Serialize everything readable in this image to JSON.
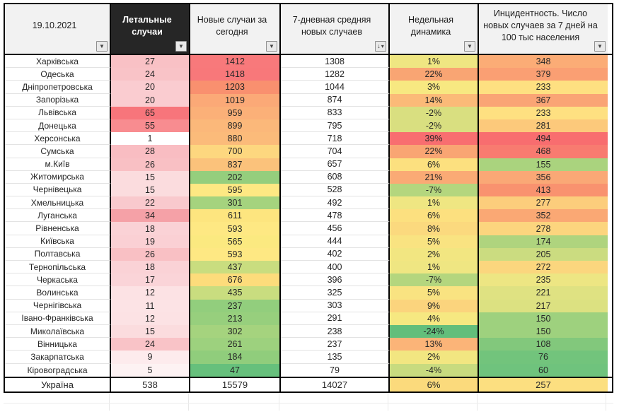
{
  "meta": {
    "date_label": "19.10.2021",
    "total_label": "Україна"
  },
  "colors": {
    "header_dark_bg": "#262626",
    "header_dark_text": "#FFFFFF",
    "header_light_bg": "#F2F2F2",
    "table_border": "#000000",
    "gridline": "#E3E3E3",
    "scale_red": "#F8696B",
    "scale_yellow": "#FFEB84",
    "scale_green": "#63BE7B"
  },
  "header": {
    "columns": [
      {
        "label": "19.10.2021",
        "dark": false,
        "filter_icon": "filter-dropdown-icon"
      },
      {
        "label": "Летальные случаи",
        "dark": true,
        "filter_icon": "filter-dropdown-icon"
      },
      {
        "label": "Новые случаи за сегодня",
        "dark": false,
        "filter_icon": "filter-dropdown-icon"
      },
      {
        "label": "7-дневная средняя новых случаев",
        "dark": false,
        "filter_icon": "filter-sorted-desc-icon"
      },
      {
        "label": "Недельная динамика",
        "dark": false,
        "filter_icon": "filter-dropdown-icon"
      },
      {
        "label": "Инцидентность. Число новых случаев за 7 дней на 100 тыс населения",
        "dark": false,
        "filter_icon": "filter-dropdown-icon"
      }
    ]
  },
  "rows": [
    {
      "region": "Харківська",
      "deaths": "27",
      "deaths_bg": "#F9C1C5",
      "new_cases": "1412",
      "new_bg": "#F8797B",
      "avg7": "1308",
      "dynamics": "1%",
      "dyn_bg": "#EFE682",
      "incidence": "348",
      "inc_bg": "#FBAC76"
    },
    {
      "region": "Одеська",
      "deaths": "24",
      "deaths_bg": "#F9C3C7",
      "new_cases": "1418",
      "new_bg": "#F8787A",
      "avg7": "1282",
      "dynamics": "22%",
      "dyn_bg": "#F9A573",
      "incidence": "379",
      "inc_bg": "#FA9F73"
    },
    {
      "region": "Дніпропетровська",
      "deaths": "20",
      "deaths_bg": "#FACCD0",
      "new_cases": "1203",
      "new_bg": "#F9906F",
      "avg7": "1044",
      "dynamics": "3%",
      "dyn_bg": "#F7E881",
      "incidence": "233",
      "inc_bg": "#FEE081"
    },
    {
      "region": "Запорізька",
      "deaths": "20",
      "deaths_bg": "#FACCD0",
      "new_cases": "1019",
      "new_bg": "#FBA977",
      "avg7": "874",
      "dynamics": "14%",
      "dyn_bg": "#FBBA78",
      "incidence": "367",
      "inc_bg": "#FAA475"
    },
    {
      "region": "Львівська",
      "deaths": "65",
      "deaths_bg": "#F7757B",
      "new_cases": "959",
      "new_bg": "#FBB078",
      "avg7": "833",
      "dynamics": "-2%",
      "dyn_bg": "#D9DF80",
      "incidence": "233",
      "inc_bg": "#FEE081"
    },
    {
      "region": "Донецька",
      "deaths": "55",
      "deaths_bg": "#F88C90",
      "new_cases": "899",
      "new_bg": "#FBB87A",
      "avg7": "795",
      "dynamics": "-2%",
      "dyn_bg": "#D9DF80",
      "incidence": "281",
      "inc_bg": "#FCC97B"
    },
    {
      "region": "Херсонська",
      "deaths": "1",
      "deaths_bg": "#FFFFFF",
      "new_cases": "880",
      "new_bg": "#FBBB7A",
      "avg7": "718",
      "dynamics": "39%",
      "dyn_bg": "#F86E70",
      "incidence": "494",
      "inc_bg": "#F86D6F"
    },
    {
      "region": "Сумська",
      "deaths": "28",
      "deaths_bg": "#F9BDC2",
      "new_cases": "700",
      "new_bg": "#FDD77F",
      "avg7": "704",
      "dynamics": "22%",
      "dyn_bg": "#F9A573",
      "incidence": "468",
      "inc_bg": "#F87B70"
    },
    {
      "region": "м.Київ",
      "deaths": "26",
      "deaths_bg": "#F9C0C4",
      "new_cases": "837",
      "new_bg": "#FBC27B",
      "avg7": "657",
      "dynamics": "6%",
      "dyn_bg": "#FCE07F",
      "incidence": "155",
      "inc_bg": "#AAD37E"
    },
    {
      "region": "Житомирська",
      "deaths": "15",
      "deaths_bg": "#FBDCDE",
      "new_cases": "202",
      "new_bg": "#95CE7D",
      "avg7": "608",
      "dynamics": "21%",
      "dyn_bg": "#FAAA75",
      "incidence": "356",
      "inc_bg": "#FAA876"
    },
    {
      "region": "Чернівецька",
      "deaths": "15",
      "deaths_bg": "#FBDCDE",
      "new_cases": "595",
      "new_bg": "#FEE883",
      "avg7": "528",
      "dynamics": "-7%",
      "dyn_bg": "#B4D67E",
      "incidence": "413",
      "inc_bg": "#F9926F"
    },
    {
      "region": "Хмельницька",
      "deaths": "22",
      "deaths_bg": "#F9C9CD",
      "new_cases": "301",
      "new_bg": "#A5D37E",
      "avg7": "492",
      "dynamics": "1%",
      "dyn_bg": "#EFE682",
      "incidence": "277",
      "inc_bg": "#FCCD7C"
    },
    {
      "region": "Луганська",
      "deaths": "34",
      "deaths_bg": "#F5A1A7",
      "new_cases": "611",
      "new_bg": "#FDE57F",
      "avg7": "478",
      "dynamics": "6%",
      "dyn_bg": "#FCE07F",
      "incidence": "352",
      "inc_bg": "#FAA874"
    },
    {
      "region": "Рівненська",
      "deaths": "18",
      "deaths_bg": "#FAD2D6",
      "new_cases": "593",
      "new_bg": "#FEE883",
      "avg7": "456",
      "dynamics": "8%",
      "dyn_bg": "#FBD97E",
      "incidence": "278",
      "inc_bg": "#FCD57E"
    },
    {
      "region": "Київська",
      "deaths": "19",
      "deaths_bg": "#FAD0D4",
      "new_cases": "565",
      "new_bg": "#FBE980",
      "avg7": "444",
      "dynamics": "5%",
      "dyn_bg": "#F9E381",
      "incidence": "174",
      "inc_bg": "#AFD47E"
    },
    {
      "region": "Полтавська",
      "deaths": "26",
      "deaths_bg": "#F9C0C4",
      "new_cases": "593",
      "new_bg": "#FEE883",
      "avg7": "402",
      "dynamics": "2%",
      "dyn_bg": "#F2E681",
      "incidence": "205",
      "inc_bg": "#CBDC80"
    },
    {
      "region": "Тернопільська",
      "deaths": "18",
      "deaths_bg": "#FAD2D6",
      "new_cases": "437",
      "new_bg": "#C9DD7F",
      "avg7": "400",
      "dynamics": "1%",
      "dyn_bg": "#EFE682",
      "incidence": "272",
      "inc_bg": "#FBD67E"
    },
    {
      "region": "Черкаська",
      "deaths": "17",
      "deaths_bg": "#FAD4D8",
      "new_cases": "676",
      "new_bg": "#FDDC7B",
      "avg7": "396",
      "dynamics": "-7%",
      "dyn_bg": "#B4D67E",
      "incidence": "235",
      "inc_bg": "#EDE683"
    },
    {
      "region": "Волинська",
      "deaths": "12",
      "deaths_bg": "#FCE2E4",
      "new_cases": "435",
      "new_bg": "#C9DD7F",
      "avg7": "325",
      "dynamics": "5%",
      "dyn_bg": "#F9E381",
      "incidence": "221",
      "inc_bg": "#DFE282"
    },
    {
      "region": "Чернігівська",
      "deaths": "11",
      "deaths_bg": "#FCE3E5",
      "new_cases": "237",
      "new_bg": "#92CE7D",
      "avg7": "303",
      "dynamics": "9%",
      "dyn_bg": "#FBD47D",
      "incidence": "217",
      "inc_bg": "#DCE181"
    },
    {
      "region": "Івано-Франківська",
      "deaths": "12",
      "deaths_bg": "#FCE2E4",
      "new_cases": "213",
      "new_bg": "#97CF7D",
      "avg7": "291",
      "dynamics": "4%",
      "dyn_bg": "#F6E881",
      "incidence": "150",
      "inc_bg": "#9ED17E"
    },
    {
      "region": "Миколаївська",
      "deaths": "15",
      "deaths_bg": "#FBDCDE",
      "new_cases": "302",
      "new_bg": "#A5D37E",
      "avg7": "238",
      "dynamics": "-24%",
      "dyn_bg": "#63BE7B",
      "incidence": "150",
      "inc_bg": "#9ED17E"
    },
    {
      "region": "Вінницька",
      "deaths": "24",
      "deaths_bg": "#F9C3C7",
      "new_cases": "261",
      "new_bg": "#9DD17E",
      "avg7": "237",
      "dynamics": "13%",
      "dyn_bg": "#FBB478",
      "incidence": "108",
      "inc_bg": "#82C87C"
    },
    {
      "region": "Закарпатська",
      "deaths": "9",
      "deaths_bg": "#FDEBED",
      "new_cases": "184",
      "new_bg": "#90CD7C",
      "avg7": "135",
      "dynamics": "2%",
      "dyn_bg": "#F2E681",
      "incidence": "76",
      "inc_bg": "#72C47C"
    },
    {
      "region": "Кіровоградська",
      "deaths": "5",
      "deaths_bg": "#FDF2F3",
      "new_cases": "47",
      "new_bg": "#66C07C",
      "avg7": "79",
      "dynamics": "-4%",
      "dyn_bg": "#C8DB7F",
      "incidence": "60",
      "inc_bg": "#6FC37D"
    }
  ],
  "total_row": {
    "region": "Україна",
    "deaths": "538",
    "deaths_bg": "#FFFFFF",
    "new_cases": "15579",
    "new_bg": "#FFFFFF",
    "avg7": "14027",
    "dynamics": "6%",
    "dyn_bg": "#FBDA7C",
    "incidence": "257",
    "inc_bg": "#FCDF80"
  }
}
